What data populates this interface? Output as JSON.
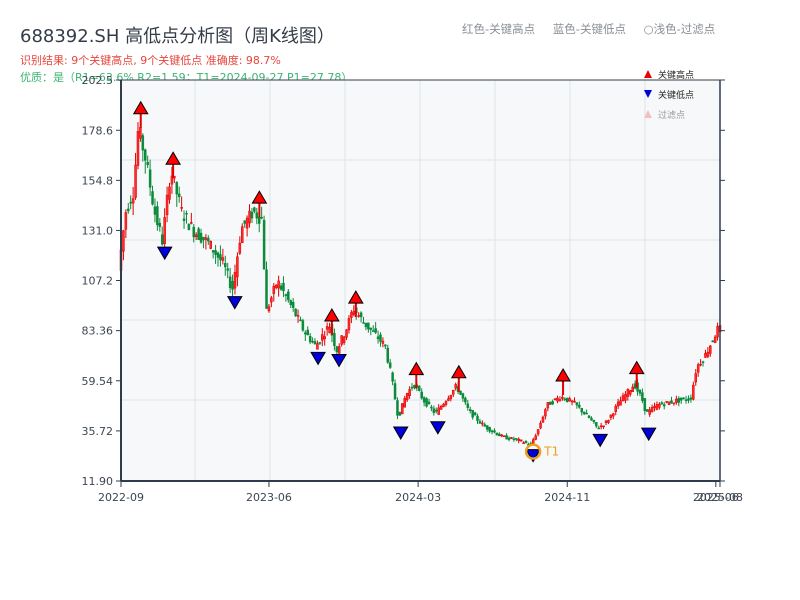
{
  "header": {
    "title": "688392.SH 高低点分析图（周K线图）",
    "result_line": "识别结果: 9个关键高点, 9个关键低点   准确度: 98.7%",
    "quality_line": "优质：是（R1=63.6%  R2=1.59；T1=2024-09-27 P1=27.78）",
    "legend_hint": [
      "红色-关键高点",
      "蓝色-关键低点",
      "○浅色-过滤点"
    ]
  },
  "legend": {
    "items": [
      {
        "label": "关键高点",
        "marker": "red-up-triangle"
      },
      {
        "label": "关键低点",
        "marker": "blue-down-triangle"
      },
      {
        "label": "过滤点",
        "marker": "light-up-triangle"
      }
    ]
  },
  "colors": {
    "up": "#e00000",
    "down": "#0a8a3a",
    "high_marker": "#ff0000",
    "low_marker": "#0000dd",
    "t1_ring": "#f0a020",
    "plot_bg": "#f6f8fa",
    "grid": "#dfe3e8",
    "axis": "#2e3c4e"
  },
  "annotation": {
    "label": "T1",
    "date": "2024-09-27",
    "price": 27.78
  },
  "chart_data": {
    "type": "candlestick",
    "title": "688392.SH 高低点分析图（周K线图）",
    "xlabel": "",
    "ylabel": "",
    "ylim": [
      11.9,
      202.5
    ],
    "y_ticks": [
      202.5,
      178.6,
      154.8,
      131.0,
      107.2,
      83.36,
      59.54,
      35.72,
      11.9
    ],
    "y_tick_labels": [
      "202.5",
      "178.6",
      "154.8",
      "131.0",
      "107.2",
      "83.36",
      "59.54",
      "35.72",
      "11.90"
    ],
    "x_tick_labels": [
      "2022-09",
      "2023-06",
      "2024-03",
      "2024-11",
      "2025-06",
      "2025-08"
    ],
    "x_tick_positions": [
      0.0,
      0.247,
      0.496,
      0.745,
      0.993,
      1.0
    ],
    "grid": true,
    "key_highs": [
      {
        "x": 0.033,
        "price": 185.5
      },
      {
        "x": 0.087,
        "price": 161.5
      },
      {
        "x": 0.231,
        "price": 143.0
      },
      {
        "x": 0.352,
        "price": 87.0
      },
      {
        "x": 0.392,
        "price": 95.5
      },
      {
        "x": 0.493,
        "price": 61.5
      },
      {
        "x": 0.564,
        "price": 60.0
      },
      {
        "x": 0.738,
        "price": 58.5
      },
      {
        "x": 0.861,
        "price": 62.0
      }
    ],
    "key_lows": [
      {
        "x": 0.073,
        "price": 124.0
      },
      {
        "x": 0.19,
        "price": 100.5
      },
      {
        "x": 0.329,
        "price": 74.0
      },
      {
        "x": 0.364,
        "price": 73.0
      },
      {
        "x": 0.467,
        "price": 38.5
      },
      {
        "x": 0.529,
        "price": 41.0
      },
      {
        "x": 0.688,
        "price": 27.78
      },
      {
        "x": 0.8,
        "price": 35.0
      },
      {
        "x": 0.881,
        "price": 38.0
      }
    ],
    "path": [
      [
        0.0,
        112
      ],
      [
        0.012,
        140
      ],
      [
        0.025,
        150
      ],
      [
        0.033,
        180
      ],
      [
        0.045,
        165
      ],
      [
        0.06,
        140
      ],
      [
        0.073,
        126
      ],
      [
        0.087,
        160
      ],
      [
        0.105,
        140
      ],
      [
        0.125,
        131
      ],
      [
        0.15,
        125
      ],
      [
        0.175,
        115
      ],
      [
        0.19,
        103
      ],
      [
        0.205,
        132
      ],
      [
        0.225,
        140
      ],
      [
        0.241,
        136
      ],
      [
        0.245,
        91
      ],
      [
        0.265,
        107
      ],
      [
        0.29,
        94
      ],
      [
        0.31,
        83
      ],
      [
        0.329,
        76
      ],
      [
        0.352,
        86
      ],
      [
        0.364,
        74
      ],
      [
        0.38,
        84
      ],
      [
        0.392,
        94
      ],
      [
        0.41,
        87
      ],
      [
        0.43,
        81
      ],
      [
        0.445,
        76
      ],
      [
        0.455,
        62
      ],
      [
        0.467,
        42
      ],
      [
        0.48,
        53
      ],
      [
        0.493,
        58
      ],
      [
        0.51,
        50
      ],
      [
        0.529,
        44
      ],
      [
        0.545,
        50
      ],
      [
        0.564,
        57
      ],
      [
        0.585,
        45
      ],
      [
        0.61,
        38
      ],
      [
        0.64,
        33
      ],
      [
        0.67,
        31
      ],
      [
        0.688,
        29
      ],
      [
        0.7,
        36
      ],
      [
        0.715,
        48
      ],
      [
        0.738,
        52
      ],
      [
        0.76,
        49
      ],
      [
        0.785,
        42
      ],
      [
        0.8,
        37
      ],
      [
        0.815,
        40
      ],
      [
        0.835,
        49
      ],
      [
        0.861,
        58
      ],
      [
        0.875,
        50
      ],
      [
        0.881,
        44
      ],
      [
        0.9,
        48
      ],
      [
        0.93,
        50
      ],
      [
        0.955,
        51
      ],
      [
        0.965,
        66
      ],
      [
        0.98,
        72
      ],
      [
        1.0,
        84
      ]
    ]
  }
}
